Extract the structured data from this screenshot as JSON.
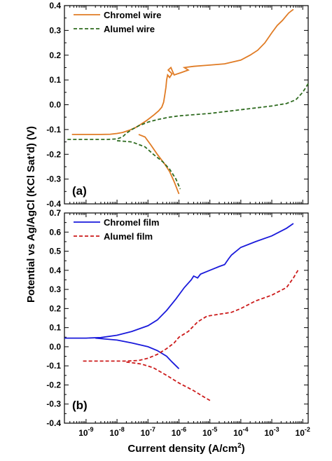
{
  "chart_data": [
    {
      "type": "line",
      "panel_label": "(a)",
      "xscale": "log",
      "xlim": [
        2e-10,
        0.015
      ],
      "ylim": [
        -0.4,
        0.4
      ],
      "yticks": [
        "-0.4",
        "-0.3",
        "-0.2",
        "-0.1",
        "0.0",
        "0.1",
        "0.2",
        "0.3",
        "0.4"
      ],
      "legend_position": "top-left",
      "series": [
        {
          "name": "Chromel wire",
          "color": "#e07b24",
          "dash": "solid",
          "points": [
            [
              3.5e-10,
              -0.12
            ],
            [
              1e-09,
              -0.12
            ],
            [
              3e-09,
              -0.12
            ],
            [
              6e-09,
              -0.119
            ],
            [
              1e-08,
              -0.116
            ],
            [
              1.5e-08,
              -0.112
            ],
            [
              2.5e-08,
              -0.103
            ],
            [
              4e-08,
              -0.092
            ],
            [
              6e-08,
              -0.078
            ],
            [
              9e-08,
              -0.064
            ],
            [
              1.2e-07,
              -0.052
            ],
            [
              1.6e-07,
              -0.04
            ],
            [
              2.2e-07,
              -0.025
            ],
            [
              2.8e-07,
              -0.01
            ],
            [
              3.2e-07,
              0.01
            ],
            [
              3.5e-07,
              0.04
            ],
            [
              3.8e-07,
              0.07
            ],
            [
              4e-07,
              0.1
            ],
            [
              4.3e-07,
              0.12
            ],
            [
              5e-07,
              0.11
            ],
            [
              6e-07,
              0.125
            ],
            [
              4.5e-07,
              0.14
            ],
            [
              5.5e-07,
              0.15
            ],
            [
              7e-07,
              0.12
            ],
            [
              1.2e-06,
              0.13
            ],
            [
              2e-06,
              0.14
            ],
            [
              1.5e-06,
              0.15
            ],
            [
              3e-06,
              0.155
            ],
            [
              6e-06,
              0.158
            ],
            [
              1e-05,
              0.16
            ],
            [
              3e-05,
              0.165
            ],
            [
              0.0001,
              0.18
            ],
            [
              0.0002,
              0.2
            ],
            [
              0.00035,
              0.22
            ],
            [
              0.0006,
              0.25
            ],
            [
              0.001,
              0.29
            ],
            [
              0.0015,
              0.32
            ],
            [
              0.0022,
              0.34
            ],
            [
              0.0035,
              0.37
            ],
            [
              0.005,
              0.385
            ]
          ],
          "cathodic_branch": [
            [
              5e-08,
              -0.12
            ],
            [
              8e-08,
              -0.13
            ],
            [
              1.2e-07,
              -0.16
            ],
            [
              2e-07,
              -0.2
            ],
            [
              3.5e-07,
              -0.24
            ],
            [
              5e-07,
              -0.27
            ],
            [
              7e-07,
              -0.31
            ],
            [
              1e-06,
              -0.36
            ]
          ]
        },
        {
          "name": "Alumel wire",
          "color": "#2e6b1f",
          "dash": "dashed",
          "points": [
            [
              2.5e-10,
              -0.14
            ],
            [
              1e-09,
              -0.14
            ],
            [
              5e-09,
              -0.14
            ],
            [
              1e-08,
              -0.138
            ],
            [
              1.5e-08,
              -0.13
            ],
            [
              2e-08,
              -0.115
            ],
            [
              3e-08,
              -0.1
            ],
            [
              5e-08,
              -0.085
            ],
            [
              1e-07,
              -0.07
            ],
            [
              2e-07,
              -0.06
            ],
            [
              5e-07,
              -0.05
            ],
            [
              1e-06,
              -0.045
            ],
            [
              1e-05,
              -0.035
            ],
            [
              0.0001,
              -0.02
            ],
            [
              0.001,
              -0.005
            ],
            [
              0.003,
              0.005
            ],
            [
              0.006,
              0.02
            ],
            [
              0.01,
              0.05
            ],
            [
              0.015,
              0.085
            ]
          ],
          "cathodic_branch": [
            [
              1e-08,
              -0.145
            ],
            [
              3e-08,
              -0.15
            ],
            [
              8e-08,
              -0.17
            ],
            [
              1.5e-07,
              -0.2
            ],
            [
              3e-07,
              -0.23
            ],
            [
              5e-07,
              -0.26
            ],
            [
              8e-07,
              -0.3
            ],
            [
              1.1e-06,
              -0.34
            ]
          ]
        }
      ]
    },
    {
      "type": "line",
      "panel_label": "(b)",
      "xscale": "log",
      "xlim": [
        2e-10,
        0.015
      ],
      "ylim": [
        -0.4,
        0.7
      ],
      "yticks": [
        "-0.4",
        "-0.3",
        "-0.2",
        "-0.1",
        "0.0",
        "0.1",
        "0.2",
        "0.3",
        "0.4",
        "0.5",
        "0.6",
        "0.7"
      ],
      "xticks": [
        "10-9",
        "10-8",
        "10-7",
        "10-6",
        "10-5",
        "10-4",
        "10-3",
        "10-2"
      ],
      "legend_position": "top-left",
      "series": [
        {
          "name": "Chromel film",
          "color": "#1a1adb",
          "dash": "solid",
          "points": [
            [
              2e-10,
              0.045
            ],
            [
              1e-09,
              0.045
            ],
            [
              3e-09,
              0.048
            ],
            [
              1e-08,
              0.06
            ],
            [
              3e-08,
              0.08
            ],
            [
              1e-07,
              0.11
            ],
            [
              2e-07,
              0.14
            ],
            [
              4e-07,
              0.19
            ],
            [
              8e-07,
              0.25
            ],
            [
              1.5e-06,
              0.31
            ],
            [
              2.5e-06,
              0.35
            ],
            [
              3e-06,
              0.37
            ],
            [
              4e-06,
              0.36
            ],
            [
              5e-06,
              0.38
            ],
            [
              1e-05,
              0.4
            ],
            [
              2e-05,
              0.42
            ],
            [
              3e-05,
              0.43
            ],
            [
              4e-05,
              0.46
            ],
            [
              5e-05,
              0.48
            ],
            [
              0.0001,
              0.52
            ],
            [
              0.0003,
              0.55
            ],
            [
              0.001,
              0.58
            ],
            [
              0.003,
              0.62
            ],
            [
              0.005,
              0.645
            ]
          ],
          "cathodic_branch": [
            [
              2e-09,
              0.045
            ],
            [
              1e-08,
              0.035
            ],
            [
              3e-08,
              0.02
            ],
            [
              1e-07,
              0.0
            ],
            [
              2e-07,
              -0.02
            ],
            [
              4e-07,
              -0.05
            ],
            [
              6e-07,
              -0.08
            ],
            [
              1e-06,
              -0.115
            ]
          ]
        },
        {
          "name": "Alumel film",
          "color": "#cc1a1a",
          "dash": "dashed",
          "points": [
            [
              8e-10,
              -0.075
            ],
            [
              5e-09,
              -0.075
            ],
            [
              2e-08,
              -0.075
            ],
            [
              5e-08,
              -0.072
            ],
            [
              1e-07,
              -0.06
            ],
            [
              2e-07,
              -0.04
            ],
            [
              4e-07,
              -0.01
            ],
            [
              7e-07,
              0.02
            ],
            [
              1e-06,
              0.05
            ],
            [
              2e-06,
              0.08
            ],
            [
              4e-06,
              0.13
            ],
            [
              8e-06,
              0.16
            ],
            [
              2e-05,
              0.17
            ],
            [
              5e-05,
              0.18
            ],
            [
              0.0001,
              0.2
            ],
            [
              0.0003,
              0.24
            ],
            [
              0.001,
              0.27
            ],
            [
              0.003,
              0.31
            ],
            [
              0.005,
              0.36
            ],
            [
              0.007,
              0.4
            ]
          ],
          "cathodic_branch": [
            [
              2e-08,
              -0.08
            ],
            [
              6e-08,
              -0.09
            ],
            [
              1.5e-07,
              -0.11
            ],
            [
              4e-07,
              -0.15
            ],
            [
              1e-06,
              -0.19
            ],
            [
              3e-06,
              -0.23
            ],
            [
              6e-06,
              -0.26
            ],
            [
              1.1e-05,
              -0.285
            ]
          ]
        }
      ]
    }
  ],
  "labels": {
    "ylabel": "Potential vs Ag/AgCl (KCl Sat’d) (V)",
    "xlabel": "Current density (A/cm",
    "xlabel_sup": "2",
    "xlabel_end": ")"
  }
}
